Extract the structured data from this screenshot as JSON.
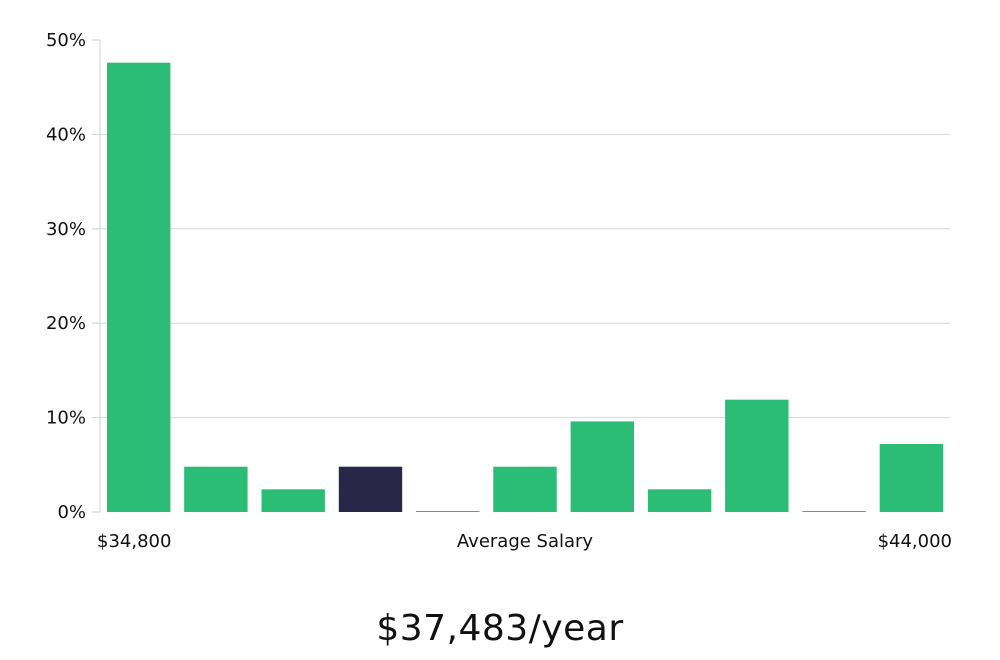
{
  "chart_data": {
    "type": "bar",
    "title": "",
    "xlabel": "Average Salary",
    "ylabel": "",
    "x_range_labels": {
      "min": "$34,800",
      "max": "$44,000"
    },
    "y_ticks": [
      "0%",
      "10%",
      "20%",
      "30%",
      "40%",
      "50%"
    ],
    "ylim": [
      0,
      50
    ],
    "values": [
      47.6,
      4.8,
      2.4,
      4.8,
      0.1,
      4.8,
      9.6,
      2.4,
      11.9,
      0.1,
      7.2
    ],
    "highlight_index": 3,
    "colors": {
      "bar": "#2bbd75",
      "highlight": "#29264a",
      "grid": "#d8d8d8"
    }
  },
  "headline": "$37,483/year"
}
